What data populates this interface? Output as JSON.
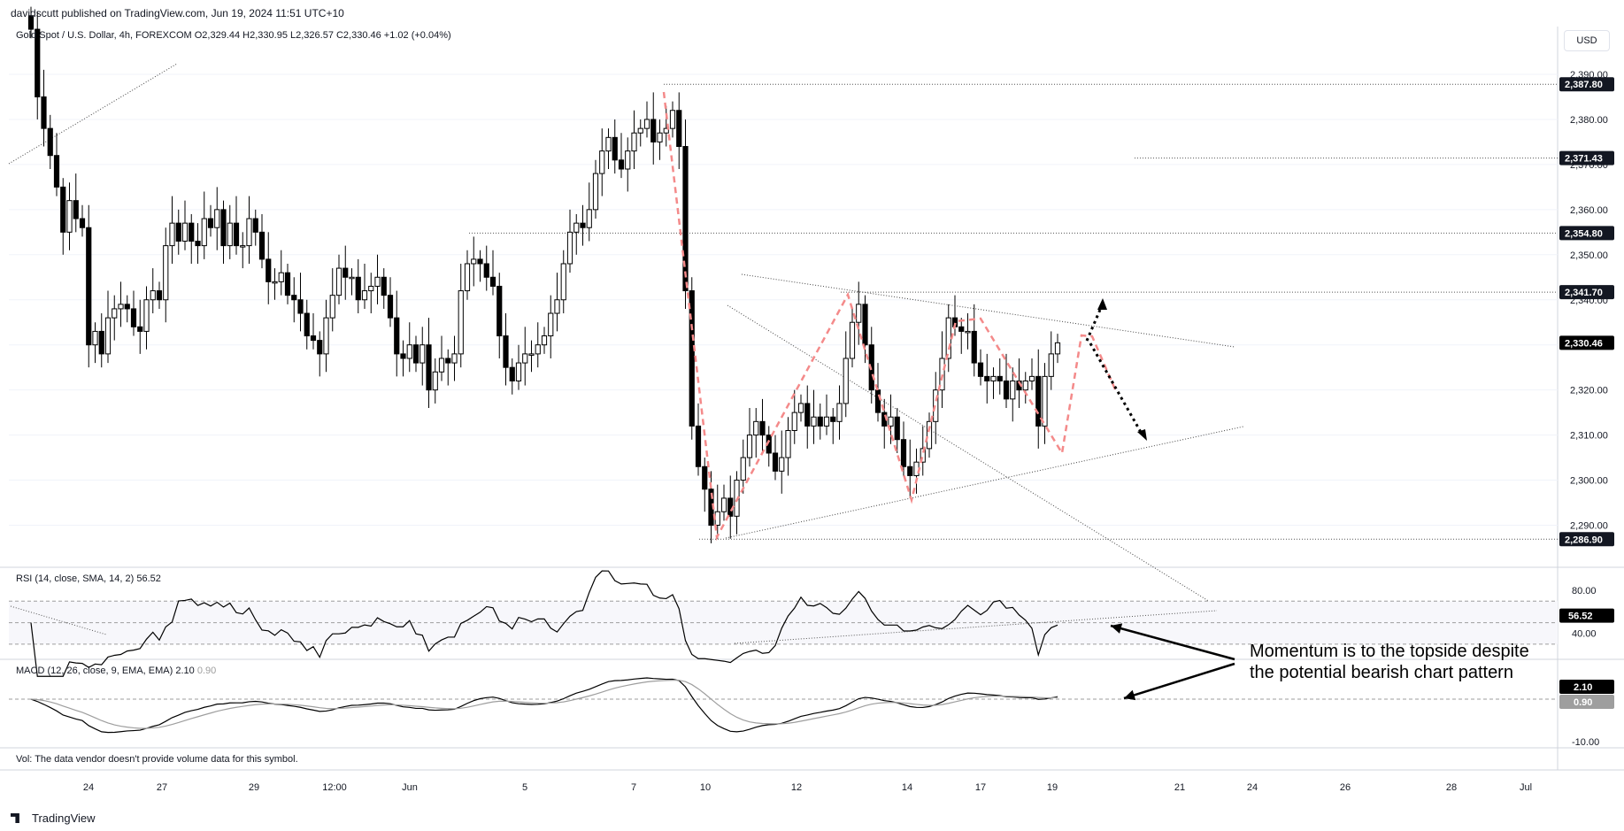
{
  "header": {
    "published": "davidscutt published on TradingView.com, Jun 19, 2024 11:51 UTC+10",
    "symbol": "Gold Spot / U.S. Dollar, 4h, FOREXCOM",
    "ohlc": "O2,329.44  H2,330.95  L2,326.57  C2,330.46  +1.02 (+0.04%)"
  },
  "currency_button": "USD",
  "rsi_label": "RSI (14, close, SMA, 14, 2)",
  "rsi_value": "56.52",
  "macd_label": "MACD (12, 26, close, 9, EMA, EMA)",
  "macd_value": "2.10",
  "macd_signal": "0.90",
  "vol_note": "Vol: The data vendor doesn't provide volume data for this symbol.",
  "annotation": [
    "Momentum is to the topside despite",
    "the potential bearish chart pattern"
  ],
  "brand": "TradingView",
  "colors": {
    "up": "#ffffff",
    "down": "#000000",
    "pattern": "#f48a8a",
    "grid": "#f0f3fa",
    "text": "#131722",
    "signal": "#9e9e9e"
  },
  "chart_data": [
    {
      "type": "candlestick",
      "title": "Gold Spot / U.S. Dollar, 4h, FOREXCOM",
      "ylim": [
        2280,
        2398
      ],
      "y_ticks": [
        "2,290.00",
        "2,300.00",
        "2,310.00",
        "2,320.00",
        "2,330.00",
        "2,340.00",
        "2,350.00",
        "2,360.00",
        "2,370.00",
        "2,380.00",
        "2,390.00"
      ],
      "x_ticks": [
        "24",
        "27",
        "29",
        "12:00",
        "Jun",
        "5",
        "7",
        "10",
        "12",
        "14",
        "17",
        "19",
        "21",
        "24",
        "26",
        "28",
        "Jul"
      ],
      "levels": [
        {
          "label": "2,387.80",
          "value": 2387.8
        },
        {
          "label": "2,371.43",
          "value": 2371.43
        },
        {
          "label": "2,354.80",
          "value": 2354.8
        },
        {
          "label": "2,341.70",
          "value": 2341.7
        },
        {
          "label": "2,286.90",
          "value": 2286.9
        }
      ],
      "last_price": {
        "label": "2,330.46",
        "value": 2330.46
      },
      "closes": [
        2400,
        2385,
        2378,
        2372,
        2365,
        2355,
        2362,
        2358,
        2356,
        2330,
        2333,
        2328,
        2336,
        2338,
        2339,
        2338,
        2334,
        2333,
        2340,
        2342,
        2340,
        2352,
        2357,
        2353,
        2357,
        2353,
        2352,
        2358,
        2356,
        2360,
        2352,
        2357,
        2352,
        2352,
        2358,
        2355,
        2349,
        2344,
        2344,
        2346,
        2341,
        2340,
        2337,
        2332,
        2331,
        2328,
        2336,
        2341,
        2347,
        2345,
        2345,
        2340,
        2342,
        2343,
        2345,
        2341,
        2336,
        2328,
        2327,
        2330,
        2326,
        2330,
        2320,
        2324,
        2327,
        2326,
        2328,
        2342,
        2348,
        2349,
        2348,
        2345,
        2343,
        2332,
        2325,
        2322,
        2326,
        2328,
        2328,
        2330,
        2332,
        2337,
        2340,
        2348,
        2355,
        2357,
        2356,
        2360,
        2368,
        2373,
        2376,
        2371,
        2369,
        2373,
        2377,
        2378,
        2380,
        2375,
        2377,
        2378,
        2382,
        2374,
        2342,
        2312,
        2303,
        2298,
        2290,
        2293,
        2296,
        2292,
        2300,
        2305,
        2310,
        2313,
        2310,
        2306,
        2302,
        2305,
        2311,
        2315,
        2317,
        2312,
        2314,
        2312,
        2314,
        2313,
        2317,
        2327,
        2335,
        2339,
        2330,
        2320,
        2315,
        2312,
        2314,
        2309,
        2303,
        2301,
        2304,
        2307,
        2313,
        2320,
        2327,
        2336,
        2334,
        2333,
        2333,
        2326,
        2323,
        2322,
        2323,
        2322,
        2318,
        2322,
        2320,
        2322,
        2323,
        2312,
        2323,
        2328,
        2330.46
      ],
      "rsi": {
        "value": 56.52,
        "levels": [
          70,
          30
        ],
        "ticks": [
          "80.00",
          "40.00"
        ]
      },
      "macd": {
        "macd": 2.1,
        "signal": 0.9,
        "ticks": [
          "-10.00"
        ]
      }
    }
  ]
}
